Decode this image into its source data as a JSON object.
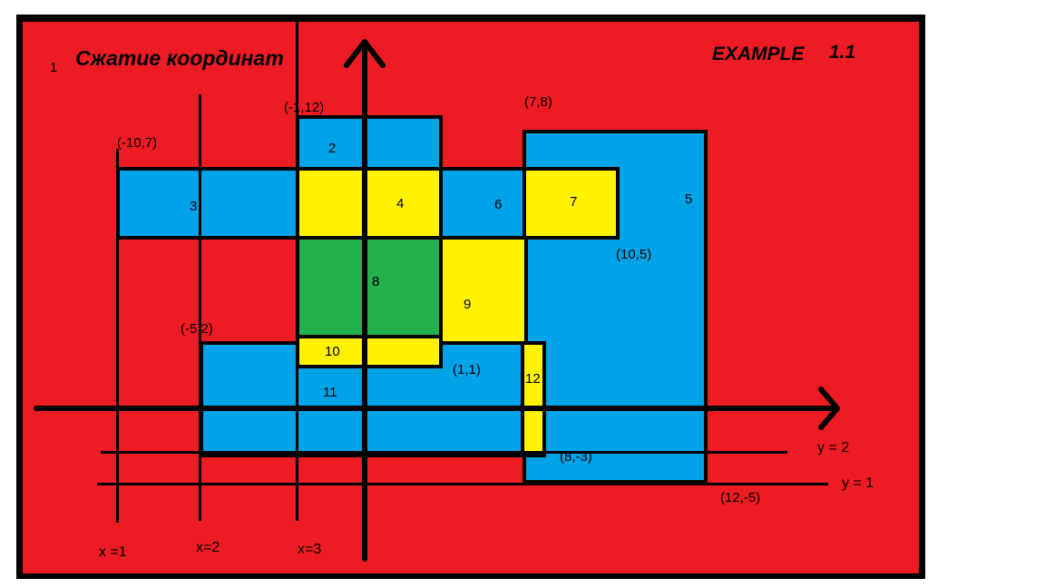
{
  "title": "Сжатие координат",
  "example_label": "EXAMPLE",
  "example_number": "1.1",
  "corner_number": "1",
  "colors": {
    "background": "#ed1c24",
    "blue": "#00a2e8",
    "yellow": "#fff200",
    "green": "#22b14c",
    "lines": "#000000"
  },
  "regions": [
    {
      "id": "2",
      "fill": "blue"
    },
    {
      "id": "3",
      "fill": "blue"
    },
    {
      "id": "4",
      "fill": "yellow"
    },
    {
      "id": "5",
      "fill": "blue"
    },
    {
      "id": "6",
      "fill": "blue"
    },
    {
      "id": "7",
      "fill": "yellow"
    },
    {
      "id": "8",
      "fill": "green"
    },
    {
      "id": "9",
      "fill": "yellow"
    },
    {
      "id": "10",
      "fill": "yellow"
    },
    {
      "id": "11",
      "fill": "blue"
    },
    {
      "id": "12",
      "fill": "yellow"
    }
  ],
  "point_labels": {
    "p_m10_7": "(-10,7)",
    "p_m1_12": "(-1,12)",
    "p_7_8": "(7,8)",
    "p_10_5": "(10,5)",
    "p_m5_2": "(-5,2)",
    "p_1_1": "(1,1)",
    "p_8_m3": "(8,-3)",
    "p_12_m5": "(12,-5)"
  },
  "line_labels": {
    "x1": "x =1",
    "x2": "x=2",
    "x3": "x=3",
    "y2": "y = 2",
    "y1": "y = 1"
  }
}
